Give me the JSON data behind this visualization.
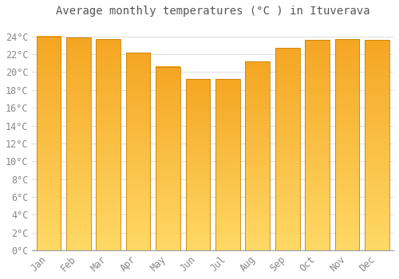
{
  "months": [
    "Jan",
    "Feb",
    "Mar",
    "Apr",
    "May",
    "Jun",
    "Jul",
    "Aug",
    "Sep",
    "Oct",
    "Nov",
    "Dec"
  ],
  "values": [
    24.0,
    23.9,
    23.7,
    22.2,
    20.6,
    19.2,
    19.2,
    21.2,
    22.7,
    23.6,
    23.7,
    23.6
  ],
  "bar_color_top": "#F5A623",
  "bar_color_bottom": "#FFD966",
  "bar_edge_color": "#C8820A",
  "background_color": "#FFFFFF",
  "plot_bg_color": "#FFFFFF",
  "grid_color": "#DDDDDD",
  "title": "Average monthly temperatures (°C ) in Ituverava",
  "title_fontsize": 10,
  "title_color": "#555555",
  "tick_color": "#888888",
  "ylabel_ticks": [
    0,
    2,
    4,
    6,
    8,
    10,
    12,
    14,
    16,
    18,
    20,
    22,
    24
  ],
  "ylim": [
    0,
    25.5
  ],
  "tick_fontsize": 8.5
}
